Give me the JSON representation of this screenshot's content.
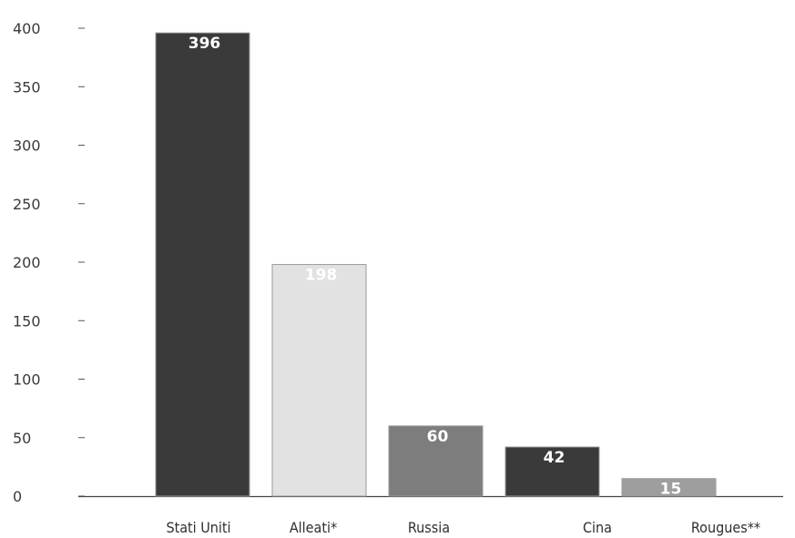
{
  "chart_data": {
    "type": "bar",
    "title": "",
    "xlabel": "",
    "ylabel": "",
    "categories": [
      "Stati Uniti",
      "Alleati*",
      "Russia",
      "Cina",
      "Rougues**"
    ],
    "values": [
      396,
      198,
      60,
      42,
      15
    ],
    "data_labels": [
      "396",
      "198",
      "60",
      "42",
      "15"
    ],
    "bar_colors": [
      "#3a3a3a",
      "#e2e2e2",
      "#7d7d7d",
      "#3a3a3a",
      "#9e9e9e"
    ],
    "ylim": [
      0,
      400
    ],
    "yticks": [
      0,
      50,
      100,
      150,
      200,
      250,
      300,
      350,
      400
    ],
    "ytick_labels": [
      "0",
      "50",
      "100",
      "150",
      "200",
      "250",
      "300",
      "350",
      "400"
    ],
    "grid": false,
    "legend": "none"
  }
}
